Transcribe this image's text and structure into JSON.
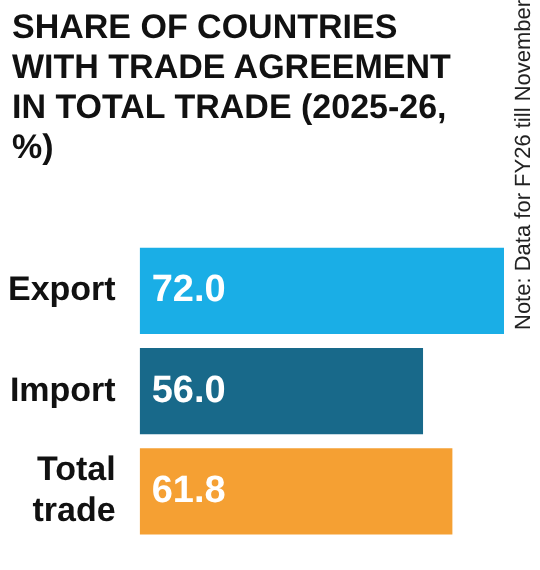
{
  "chart_data": {
    "type": "bar",
    "orientation": "horizontal",
    "title": "SHARE OF COUNTRIES WITH TRADE AGREEMENT IN TOTAL TRADE (2025-26, %)",
    "categories": [
      "Export",
      "Import",
      "Total trade"
    ],
    "values": [
      72.0,
      56.0,
      61.8
    ],
    "colors": [
      "#1aaee6",
      "#18698a",
      "#f5a033"
    ],
    "value_labels": [
      "72.0",
      "56.0",
      "61.8"
    ],
    "xlim": [
      0,
      72
    ],
    "tick_labels": "y",
    "legend": false,
    "annotations": [
      "Note: Data for FY26 till November"
    ]
  }
}
